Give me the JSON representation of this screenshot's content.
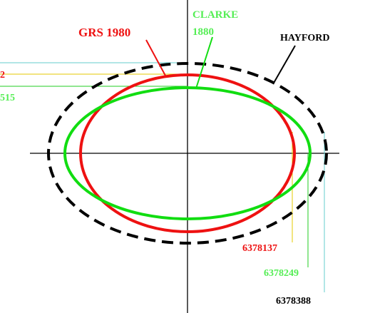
{
  "labels": {
    "grs": "GRS 1980",
    "clarke_name": "CLARKE",
    "clarke_year": "1880",
    "hayford": "HAYFORD",
    "grs_b_partial": "2",
    "clarke_b_partial": "515",
    "grs_a": "6378137",
    "clarke_a": "6378249",
    "hayford_a": "6378388"
  }
}
